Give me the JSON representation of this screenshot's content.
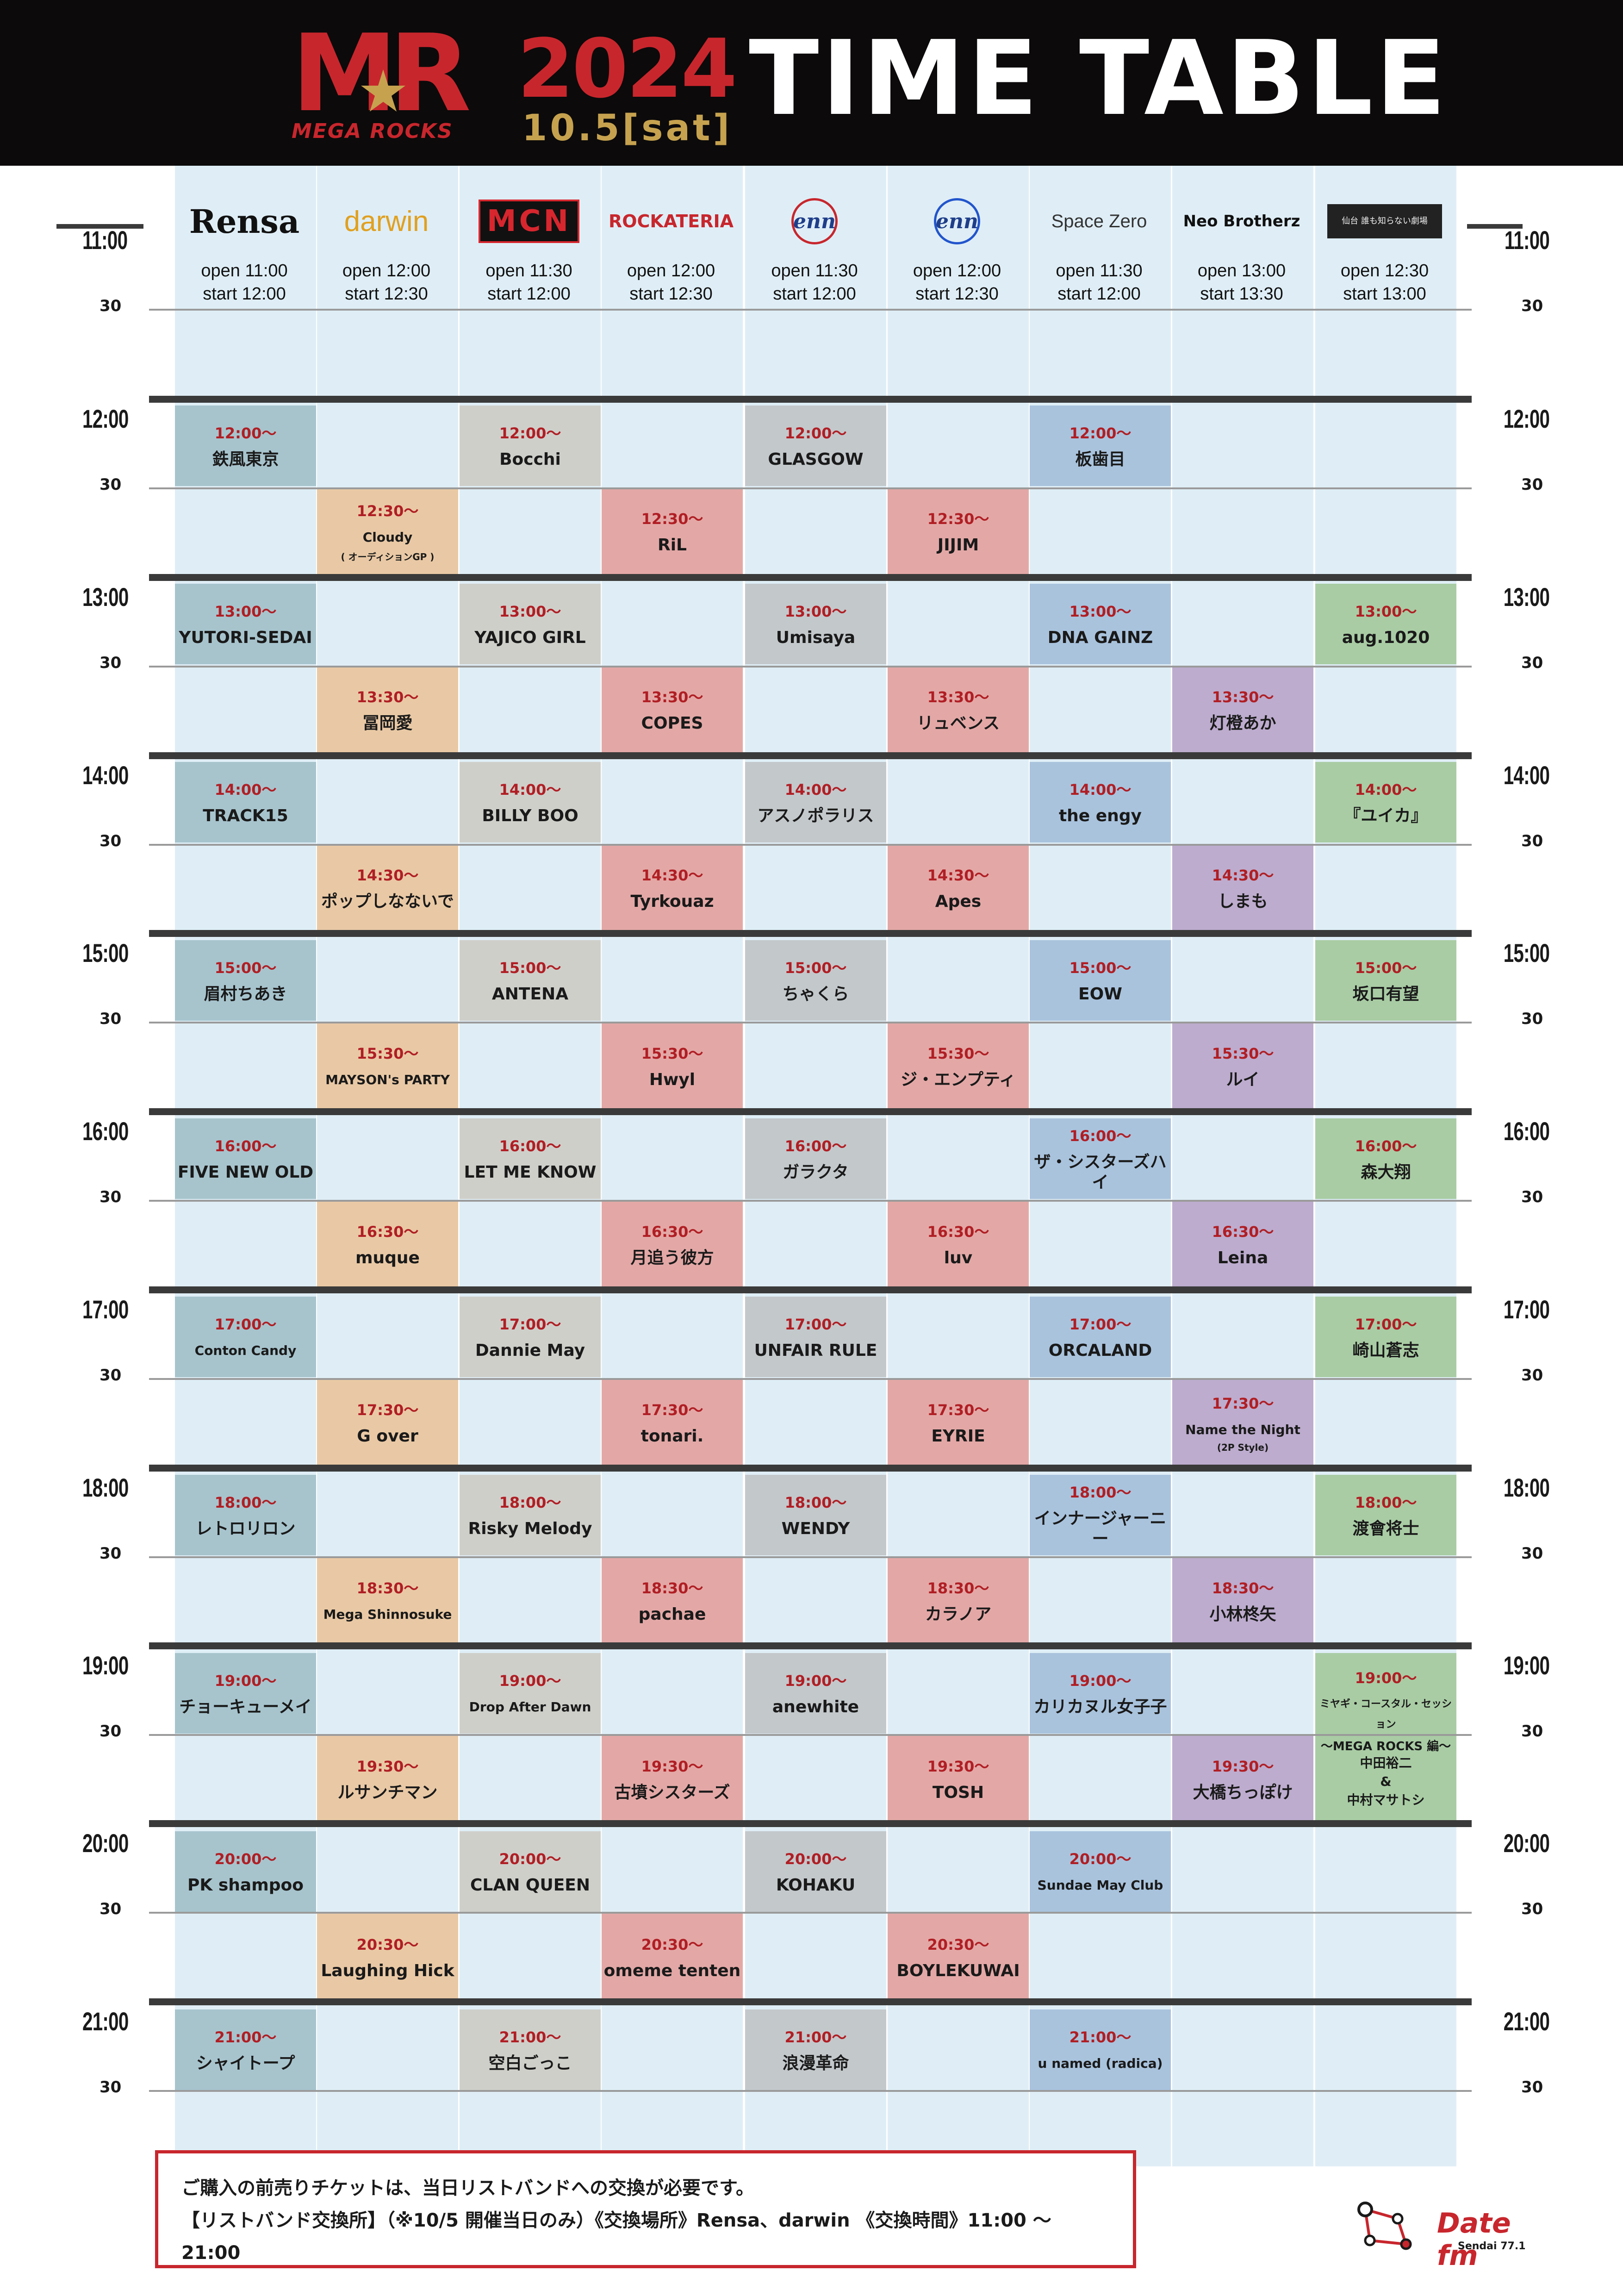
{
  "header": {
    "logo_mr": "MR",
    "logo_sub": "MEGA ROCKS",
    "year": "2024",
    "date": "10.5[sat]",
    "title": "TIME TABLE"
  },
  "colors": {
    "header_bg": "#0c0a0a",
    "brand_red": "#c8262d",
    "gold": "#c6a24f",
    "column_bg": "#dfeef6"
  },
  "times": [
    "11:00",
    "12:00",
    "13:00",
    "14:00",
    "15:00",
    "16:00",
    "17:00",
    "18:00",
    "19:00",
    "20:00",
    "21:00"
  ],
  "half_label": "30",
  "venues": [
    {
      "name": "Rensa",
      "open": "open 11:00",
      "start": "start 12:00",
      "color": "#a7c4cd"
    },
    {
      "name": "darwin",
      "open": "open 12:00",
      "start": "start 12:30",
      "color": "#e9c9a5"
    },
    {
      "name": "MCN",
      "open": "open 11:30",
      "start": "start 12:00",
      "color": "#cfcfca"
    },
    {
      "name": "ROCKATERIA",
      "open": "open 12:00",
      "start": "start 12:30",
      "color": "#e3a8a6"
    },
    {
      "name": "enn",
      "open": "open 11:30",
      "start": "start 12:00",
      "color": "#c3c8cb"
    },
    {
      "name": "enn",
      "open": "open 12:00",
      "start": "start 12:30",
      "color": "#e3a8a6"
    },
    {
      "name": "Space Zero",
      "open": "open 11:30",
      "start": "start 12:00",
      "color": "#a9c3dd"
    },
    {
      "name": "Neo Brotherz",
      "open": "open 13:00",
      "start": "start 13:30",
      "color": "#bdacce"
    },
    {
      "name": "仙台 誰も知らない劇場",
      "open": "open 12:30",
      "start": "start 13:00",
      "color": "#a9cca4"
    }
  ],
  "performances": [
    {
      "v": 0,
      "s": 2,
      "time": "12:00～",
      "name": "鉄風東京"
    },
    {
      "v": 0,
      "s": 4,
      "time": "13:00～",
      "name": "YUTORI-SEDAI"
    },
    {
      "v": 0,
      "s": 6,
      "time": "14:00～",
      "name": "TRACK15"
    },
    {
      "v": 0,
      "s": 8,
      "time": "15:00～",
      "name": "眉村ちあき"
    },
    {
      "v": 0,
      "s": 10,
      "time": "16:00～",
      "name": "FIVE NEW OLD"
    },
    {
      "v": 0,
      "s": 12,
      "time": "17:00～",
      "name": "Conton Candy",
      "small": true
    },
    {
      "v": 0,
      "s": 14,
      "time": "18:00～",
      "name": "レトロリロン"
    },
    {
      "v": 0,
      "s": 16,
      "time": "19:00～",
      "name": "チョーキューメイ"
    },
    {
      "v": 0,
      "s": 18,
      "time": "20:00～",
      "name": "PK shampoo"
    },
    {
      "v": 0,
      "s": 20,
      "time": "21:00～",
      "name": "シャイトープ"
    },
    {
      "v": 1,
      "s": 3,
      "time": "12:30～",
      "name": "Cloudy",
      "sub": "( オーディションGP )",
      "small": true
    },
    {
      "v": 1,
      "s": 5,
      "time": "13:30～",
      "name": "冨岡愛"
    },
    {
      "v": 1,
      "s": 7,
      "time": "14:30～",
      "name": "ポップしなないで"
    },
    {
      "v": 1,
      "s": 9,
      "time": "15:30～",
      "name": "MAYSON's PARTY",
      "small": true
    },
    {
      "v": 1,
      "s": 11,
      "time": "16:30～",
      "name": "muque"
    },
    {
      "v": 1,
      "s": 13,
      "time": "17:30～",
      "name": "G over"
    },
    {
      "v": 1,
      "s": 15,
      "time": "18:30～",
      "name": "Mega Shinnosuke",
      "small": true
    },
    {
      "v": 1,
      "s": 17,
      "time": "19:30～",
      "name": "ルサンチマン"
    },
    {
      "v": 1,
      "s": 19,
      "time": "20:30～",
      "name": "Laughing Hick"
    },
    {
      "v": 2,
      "s": 2,
      "time": "12:00～",
      "name": "Bocchi"
    },
    {
      "v": 2,
      "s": 4,
      "time": "13:00～",
      "name": "YAJICO GIRL"
    },
    {
      "v": 2,
      "s": 6,
      "time": "14:00～",
      "name": "BILLY BOO"
    },
    {
      "v": 2,
      "s": 8,
      "time": "15:00～",
      "name": "ANTENA"
    },
    {
      "v": 2,
      "s": 10,
      "time": "16:00～",
      "name": "LET ME KNOW"
    },
    {
      "v": 2,
      "s": 12,
      "time": "17:00～",
      "name": "Dannie May"
    },
    {
      "v": 2,
      "s": 14,
      "time": "18:00～",
      "name": "Risky Melody"
    },
    {
      "v": 2,
      "s": 16,
      "time": "19:00～",
      "name": "Drop After Dawn",
      "small": true
    },
    {
      "v": 2,
      "s": 18,
      "time": "20:00～",
      "name": "CLAN QUEEN"
    },
    {
      "v": 2,
      "s": 20,
      "time": "21:00～",
      "name": "空白ごっこ"
    },
    {
      "v": 3,
      "s": 3,
      "time": "12:30～",
      "name": "RiL"
    },
    {
      "v": 3,
      "s": 5,
      "time": "13:30～",
      "name": "COPES"
    },
    {
      "v": 3,
      "s": 7,
      "time": "14:30～",
      "name": "Tyrkouaz"
    },
    {
      "v": 3,
      "s": 9,
      "time": "15:30～",
      "name": "Hwyl"
    },
    {
      "v": 3,
      "s": 11,
      "time": "16:30～",
      "name": "月追う彼方"
    },
    {
      "v": 3,
      "s": 13,
      "time": "17:30～",
      "name": "tonari."
    },
    {
      "v": 3,
      "s": 15,
      "time": "18:30～",
      "name": "pachae"
    },
    {
      "v": 3,
      "s": 17,
      "time": "19:30～",
      "name": "古墳シスターズ"
    },
    {
      "v": 3,
      "s": 19,
      "time": "20:30～",
      "name": "omeme tenten"
    },
    {
      "v": 4,
      "s": 2,
      "time": "12:00～",
      "name": "GLASGOW"
    },
    {
      "v": 4,
      "s": 4,
      "time": "13:00～",
      "name": "Umisaya"
    },
    {
      "v": 4,
      "s": 6,
      "time": "14:00～",
      "name": "アスノポラリス"
    },
    {
      "v": 4,
      "s": 8,
      "time": "15:00～",
      "name": "ちゃくら"
    },
    {
      "v": 4,
      "s": 10,
      "time": "16:00～",
      "name": "ガラクタ"
    },
    {
      "v": 4,
      "s": 12,
      "time": "17:00～",
      "name": "UNFAIR RULE"
    },
    {
      "v": 4,
      "s": 14,
      "time": "18:00～",
      "name": "WENDY"
    },
    {
      "v": 4,
      "s": 16,
      "time": "19:00～",
      "name": "anewhite"
    },
    {
      "v": 4,
      "s": 18,
      "time": "20:00～",
      "name": "KOHAKU"
    },
    {
      "v": 4,
      "s": 20,
      "time": "21:00～",
      "name": "浪漫革命"
    },
    {
      "v": 5,
      "s": 3,
      "time": "12:30～",
      "name": "JIJIM"
    },
    {
      "v": 5,
      "s": 5,
      "time": "13:30～",
      "name": "リュベンス"
    },
    {
      "v": 5,
      "s": 7,
      "time": "14:30～",
      "name": "Apes"
    },
    {
      "v": 5,
      "s": 9,
      "time": "15:30～",
      "name": "ジ・エンプティ"
    },
    {
      "v": 5,
      "s": 11,
      "time": "16:30～",
      "name": "luv"
    },
    {
      "v": 5,
      "s": 13,
      "time": "17:30～",
      "name": "EYRIE"
    },
    {
      "v": 5,
      "s": 15,
      "time": "18:30～",
      "name": "カラノア"
    },
    {
      "v": 5,
      "s": 17,
      "time": "19:30～",
      "name": "TOSH"
    },
    {
      "v": 5,
      "s": 19,
      "time": "20:30～",
      "name": "BOYLEKUWAI"
    },
    {
      "v": 6,
      "s": 2,
      "time": "12:00～",
      "name": "板歯目"
    },
    {
      "v": 6,
      "s": 4,
      "time": "13:00～",
      "name": "DNA GAINZ"
    },
    {
      "v": 6,
      "s": 6,
      "time": "14:00～",
      "name": "the engy"
    },
    {
      "v": 6,
      "s": 8,
      "time": "15:00～",
      "name": "EOW"
    },
    {
      "v": 6,
      "s": 10,
      "time": "16:00～",
      "name": "ザ・シスターズハイ"
    },
    {
      "v": 6,
      "s": 12,
      "time": "17:00～",
      "name": "ORCALAND"
    },
    {
      "v": 6,
      "s": 14,
      "time": "18:00～",
      "name": "インナージャーニー"
    },
    {
      "v": 6,
      "s": 16,
      "time": "19:00～",
      "name": "カリカヌル女子子"
    },
    {
      "v": 6,
      "s": 18,
      "time": "20:00～",
      "name": "Sundae May Club",
      "small": true
    },
    {
      "v": 6,
      "s": 20,
      "time": "21:00～",
      "name": "u named (radica)",
      "small": true
    },
    {
      "v": 7,
      "s": 5,
      "time": "13:30～",
      "name": "灯橙あか"
    },
    {
      "v": 7,
      "s": 7,
      "time": "14:30～",
      "name": "しまも"
    },
    {
      "v": 7,
      "s": 9,
      "time": "15:30～",
      "name": "ルイ"
    },
    {
      "v": 7,
      "s": 11,
      "time": "16:30～",
      "name": "Leina"
    },
    {
      "v": 7,
      "s": 13,
      "time": "17:30～",
      "name": "Name the Night",
      "sub": "(2P Style)",
      "small": true
    },
    {
      "v": 7,
      "s": 15,
      "time": "18:30～",
      "name": "小林柊矢"
    },
    {
      "v": 7,
      "s": 17,
      "time": "19:30～",
      "name": "大橋ちっぽけ"
    },
    {
      "v": 8,
      "s": 4,
      "time": "13:00～",
      "name": "aug.1020"
    },
    {
      "v": 8,
      "s": 6,
      "time": "14:00～",
      "name": "『ユイカ』"
    },
    {
      "v": 8,
      "s": 8,
      "time": "15:00～",
      "name": "坂口有望"
    },
    {
      "v": 8,
      "s": 10,
      "time": "16:00～",
      "name": "森大翔"
    },
    {
      "v": 8,
      "s": 12,
      "time": "17:00～",
      "name": "崎山蒼志"
    },
    {
      "v": 8,
      "s": 14,
      "time": "18:00～",
      "name": "渡會将士"
    },
    {
      "v": 8,
      "s": 16,
      "span": 2,
      "time": "19:00～",
      "name": "ミヤギ・コースタル・セッション",
      "sub": "～MEGA ROCKS 編～",
      "extra": [
        "中田裕二",
        "&",
        "中村マサトシ"
      ],
      "small": true
    }
  ],
  "notice": {
    "line1": "ご購入の前売りチケットは、当日リストバンドへの交換が必要です。",
    "line2": "【リストバンド交換所】（※10/5 開催当日のみ）《交換場所》Rensa、darwin 《交換時間》11:00 ～ 21:00"
  },
  "datefm": {
    "name": "Date fm",
    "sub": "Sendai 77.1"
  }
}
